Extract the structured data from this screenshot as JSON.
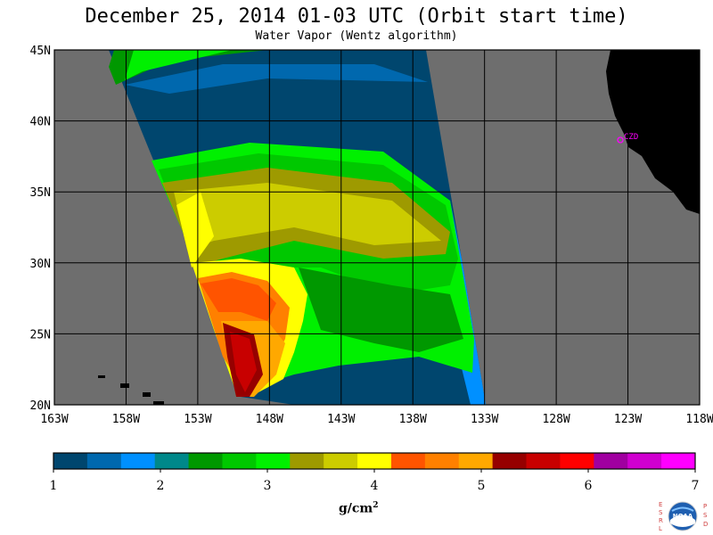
{
  "header": {
    "title": "December 25, 2014  01-03 UTC  (Orbit start time)",
    "subtitle": "Water Vapor (Wentz algorithm)"
  },
  "map": {
    "lat_labels": [
      "45N",
      "40N",
      "35N",
      "30N",
      "25N",
      "20N"
    ],
    "lon_labels": [
      "163W",
      "158W",
      "153W",
      "148W",
      "143W",
      "138W",
      "133W",
      "128W",
      "123W",
      "118W"
    ],
    "lat_range": [
      20,
      45
    ],
    "lon_range": [
      -163,
      -118
    ],
    "grid_step_deg": 5,
    "station_label": "CZD",
    "background_color": "#6e6e6e",
    "land_color": "#000000",
    "grid_color": "#000000",
    "station_color": "#ff00ff"
  },
  "colorbar": {
    "tick_labels": [
      "1",
      "2",
      "3",
      "4",
      "5",
      "6",
      "7"
    ],
    "units": "g/cm",
    "units_sup": "2",
    "min": 1,
    "max": 7,
    "colors": [
      "#00466e",
      "#0068ae",
      "#0090ff",
      "#00888a",
      "#009800",
      "#00c800",
      "#00f000",
      "#9e9a00",
      "#cccc00",
      "#ffff00",
      "#ff5400",
      "#ff8000",
      "#ffa800",
      "#960000",
      "#c80000",
      "#ff0000",
      "#a000a0",
      "#d000d0",
      "#ff00ff"
    ]
  },
  "logo": {
    "left_letters": [
      "E",
      "S",
      "R",
      "L"
    ],
    "right_letters": [
      "P",
      "S",
      "D"
    ],
    "name": "NOAA"
  }
}
